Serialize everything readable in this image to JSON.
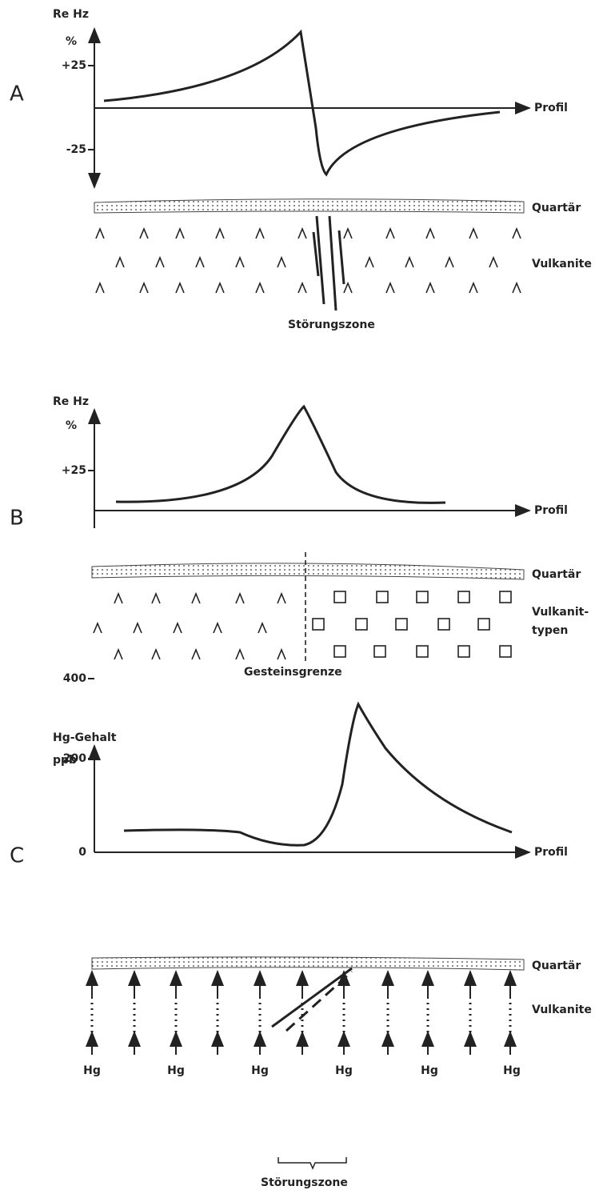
{
  "panels": [
    {
      "label": "A",
      "y_label": [
        "Re Hz",
        "%"
      ],
      "ticks": [
        "+25",
        "-25"
      ],
      "x_label": "Profil",
      "layers": [
        "Quartär",
        "Vulkanite"
      ],
      "annotation": "Störungszone"
    },
    {
      "label": "B",
      "y_label": [
        "Re Hz",
        "%"
      ],
      "ticks": [
        "+25"
      ],
      "x_label": "Profil",
      "layers": [
        "Quartär",
        "Vulkanit-",
        "typen"
      ],
      "annotation": "Gesteinsgrenze"
    },
    {
      "label": "C",
      "y_label": [
        "Hg-Gehalt",
        "ppb"
      ],
      "ticks": [
        "400",
        "200",
        "0"
      ],
      "x_label": "Profil",
      "layers": [
        "Quartär",
        "Vulkanite"
      ],
      "annotation": "Störungszone",
      "sources": [
        "Hg",
        "Hg",
        "Hg",
        "Hg",
        "Hg",
        "Hg"
      ]
    }
  ]
}
